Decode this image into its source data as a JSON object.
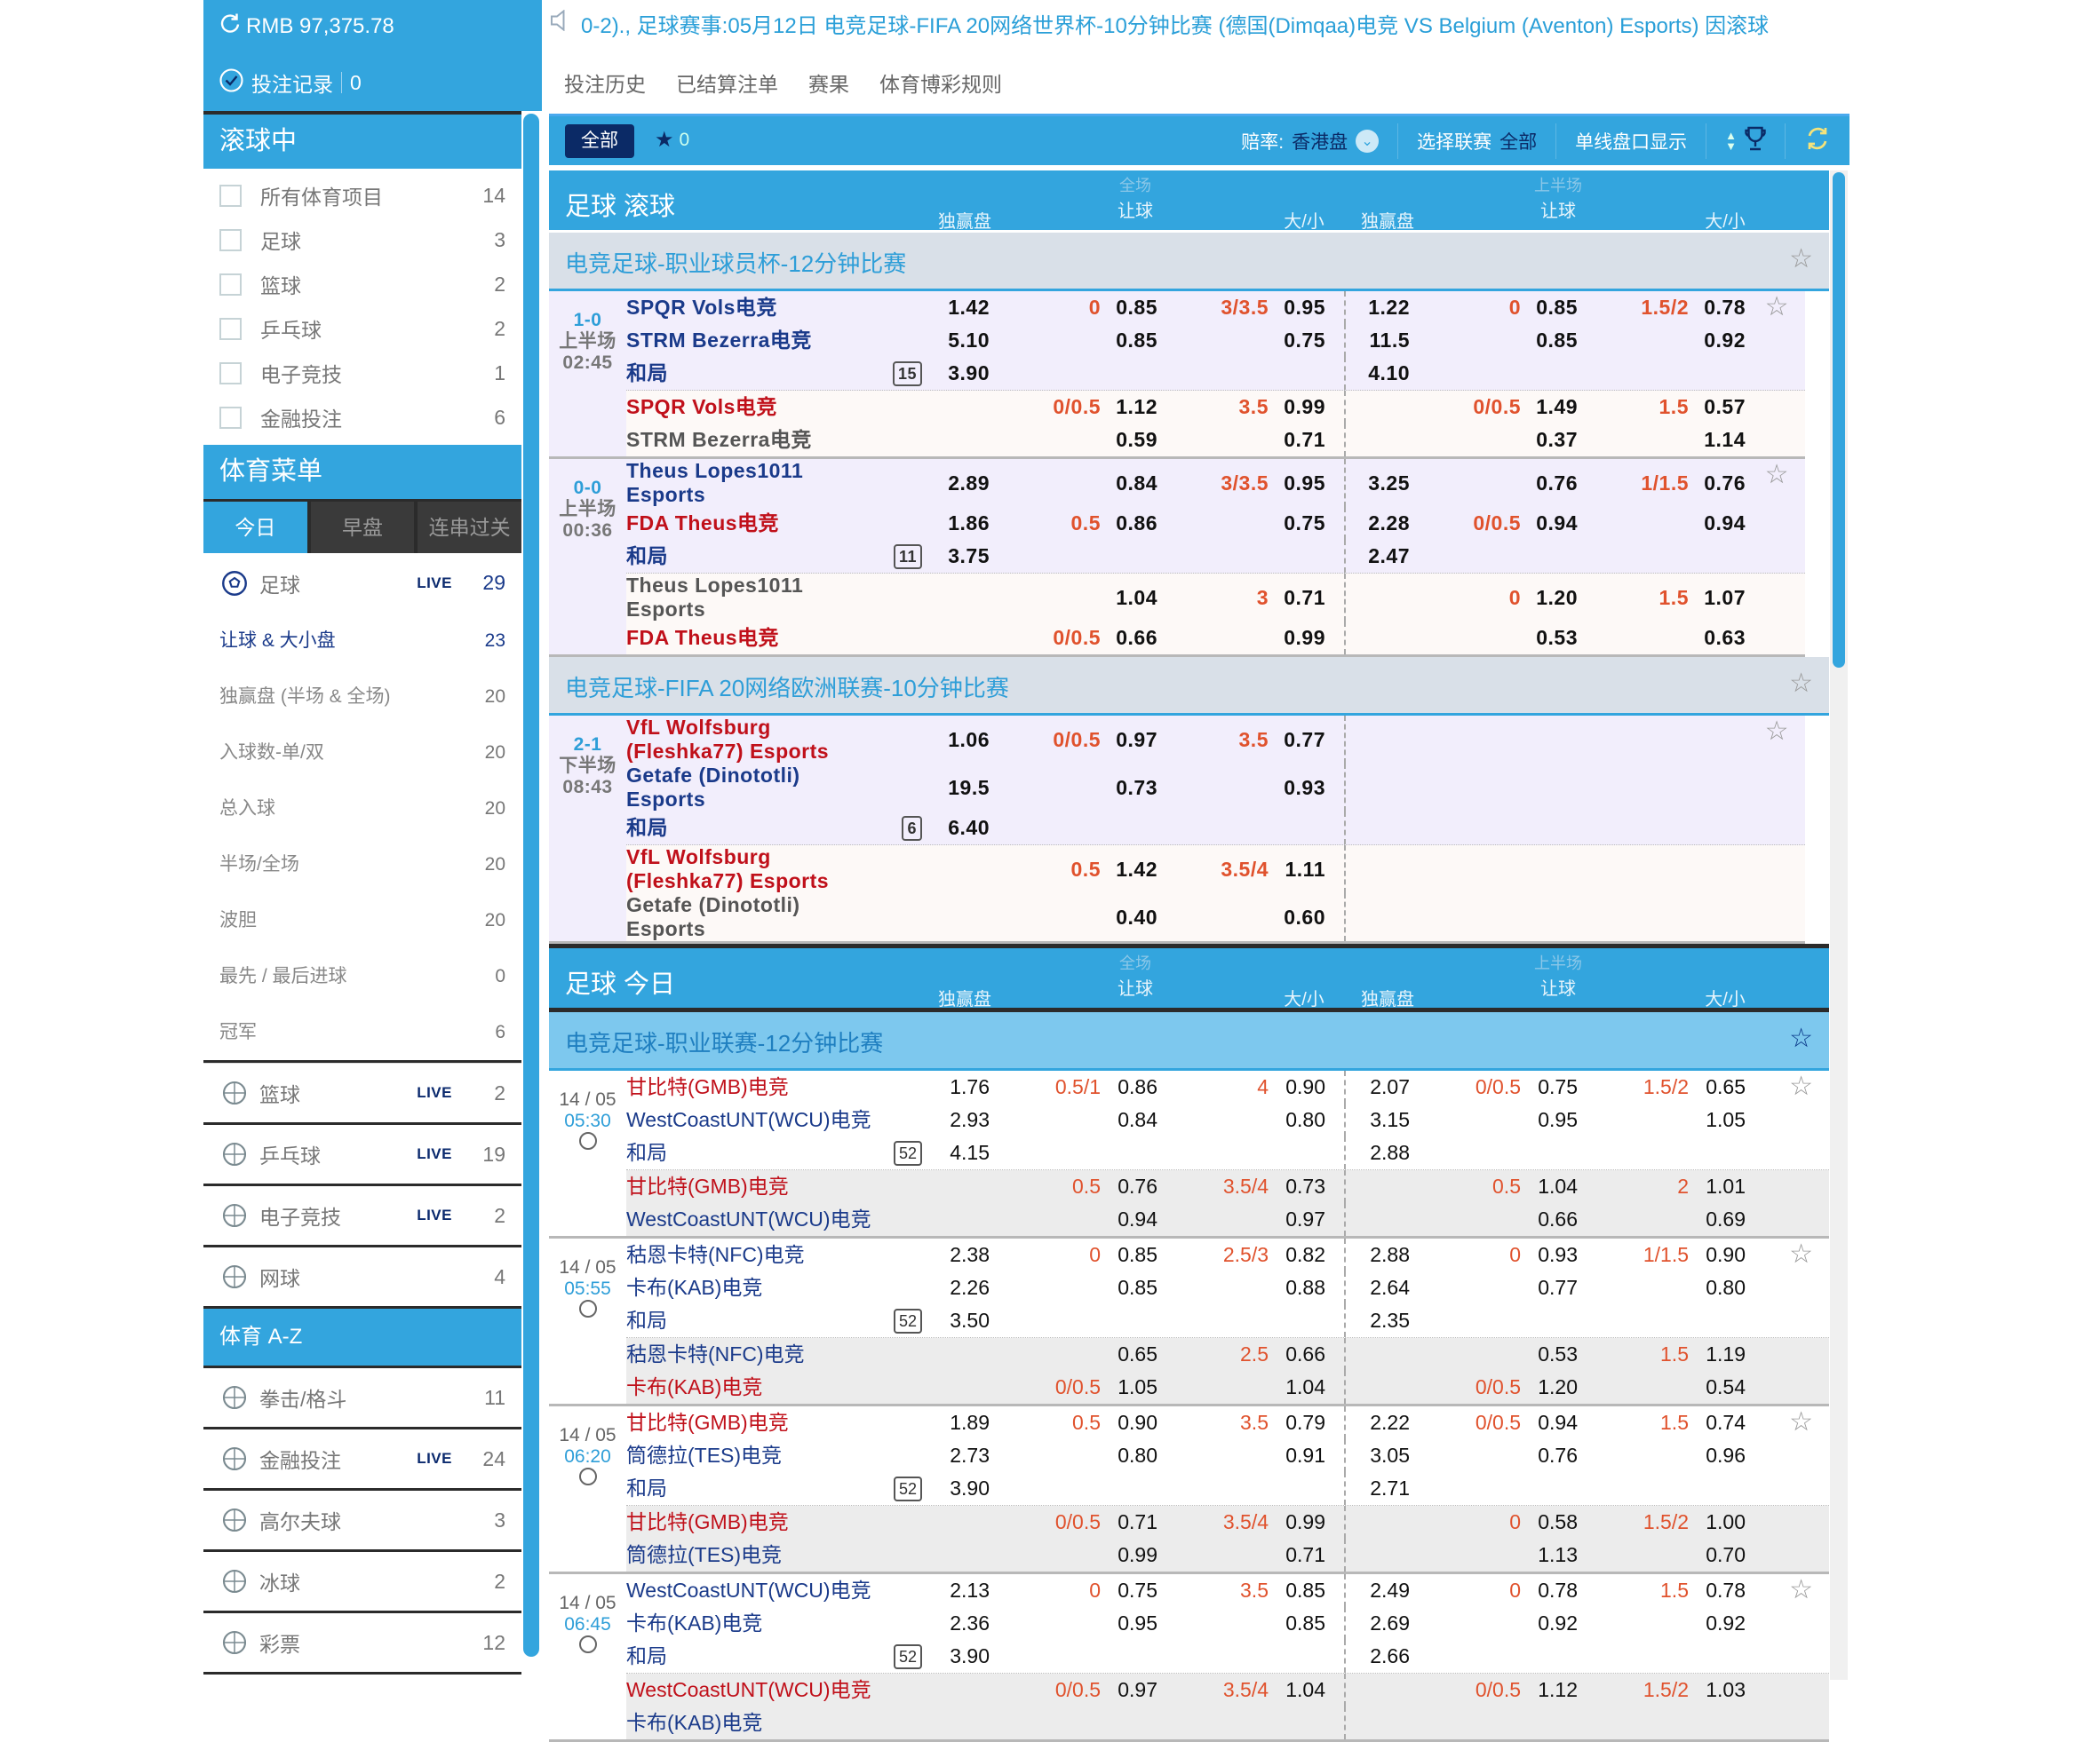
{
  "account": {
    "balance": "RMB 97,375.78",
    "bet_record_label": "投注记录",
    "bet_record_count": "0"
  },
  "ticker": "0-2)., 足球赛事:05月12日 电竞足球-FIFA 20网络世界杯-10分钟比赛 (德国(Dimqaa)电竞 VS Belgium (Aventon) Esports) 因滚球",
  "links": [
    "投注历史",
    "已结算注单",
    "赛果",
    "体育博彩规则"
  ],
  "toolbar": {
    "all": "全部",
    "fav_count": "0",
    "odds_label": "赔率:",
    "odds_value": "香港盘",
    "league_label": "选择联赛",
    "league_value": "全部",
    "single_line": "单线盘口显示"
  },
  "colors": {
    "primary": "#33a5de",
    "navy": "#0b2a66",
    "team_blue": "#1a3a8a",
    "team_red": "#c0101a",
    "line_orange": "#e0522d"
  },
  "sidebar": {
    "live_title": "滚球中",
    "live_items": [
      {
        "label": "所有体育项目",
        "count": "14"
      },
      {
        "label": "足球",
        "count": "3"
      },
      {
        "label": "篮球",
        "count": "2"
      },
      {
        "label": "乒乓球",
        "count": "2"
      },
      {
        "label": "电子竞技",
        "count": "1"
      },
      {
        "label": "金融投注",
        "count": "6"
      }
    ],
    "menu_title": "体育菜单",
    "tabs": [
      "今日",
      "早盘",
      "连串过关"
    ],
    "soccer": {
      "label": "足球",
      "live": "LIVE",
      "count": "29",
      "icon": "soccer-icon"
    },
    "soccer_sub": [
      {
        "label": "让球 & 大小盘",
        "count": "23"
      },
      {
        "label": "独赢盘 (半场 & 全场)",
        "count": "20"
      },
      {
        "label": "入球数-单/双",
        "count": "20"
      },
      {
        "label": "总入球",
        "count": "20"
      },
      {
        "label": "半场/全场",
        "count": "20"
      },
      {
        "label": "波胆",
        "count": "20"
      },
      {
        "label": "最先 / 最后进球",
        "count": "0"
      },
      {
        "label": "冠军",
        "count": "6"
      }
    ],
    "sports": [
      {
        "label": "篮球",
        "live": "LIVE",
        "count": "2",
        "icon": "basketball-icon"
      },
      {
        "label": "乒乓球",
        "live": "LIVE",
        "count": "19",
        "icon": "table-tennis-icon"
      },
      {
        "label": "电子竞技",
        "live": "LIVE",
        "count": "2",
        "icon": "gamepad-icon"
      },
      {
        "label": "网球",
        "live": "",
        "count": "4",
        "icon": "tennis-icon"
      }
    ],
    "az_title": "体育 A-Z",
    "az": [
      {
        "label": "拳击/格斗",
        "live": "",
        "count": "11",
        "icon": "boxing-glove-icon"
      },
      {
        "label": "金融投注",
        "live": "LIVE",
        "count": "24",
        "icon": "chart-icon"
      },
      {
        "label": "高尔夫球",
        "live": "",
        "count": "3",
        "icon": "golf-icon"
      },
      {
        "label": "冰球",
        "live": "",
        "count": "2",
        "icon": "hockey-icon"
      },
      {
        "label": "彩票",
        "live": "",
        "count": "12",
        "icon": "lottery-ball-icon"
      }
    ]
  },
  "columns": {
    "ft": "全场",
    "fh": "上半场",
    "x12": "独赢盘",
    "hdp": "让球",
    "ou": "大/小"
  },
  "sections": [
    {
      "title": "足球 滚球",
      "kind": "live",
      "leagues": [
        {
          "name": "电竞足球-职业球员杯-12分钟比赛",
          "matches": [
            {
              "a": "1-0",
              "b": "上半场",
              "c": "02:45",
              "badge": "15",
              "main": [
                {
                  "n": "SPQR Vols电竞",
                  "c": "blue",
                  "m": "1.42",
                  "hl": "0",
                  "ho": "0.85",
                  "ol": "3/3.5",
                  "oo": "0.95",
                  "fm": "1.22",
                  "fhl": "0",
                  "fho": "0.85",
                  "fol": "1.5/2",
                  "foo": "0.78"
                },
                {
                  "n": "STRM Bezerra电竞",
                  "c": "blue",
                  "m": "5.10",
                  "hl": "",
                  "ho": "0.85",
                  "ol": "",
                  "oo": "0.75",
                  "fm": "11.5",
                  "fhl": "",
                  "fho": "0.85",
                  "fol": "",
                  "foo": "0.92"
                },
                {
                  "n": "和局",
                  "c": "blue",
                  "m": "3.90",
                  "hl": "",
                  "ho": "",
                  "ol": "",
                  "oo": "",
                  "fm": "4.10",
                  "fhl": "",
                  "fho": "",
                  "fol": "",
                  "foo": ""
                }
              ],
              "alt": [
                {
                  "n": "SPQR Vols电竞",
                  "c": "red",
                  "m": "",
                  "hl": "0/0.5",
                  "ho": "1.12",
                  "ol": "3.5",
                  "oo": "0.99",
                  "fm": "",
                  "fhl": "0/0.5",
                  "fho": "1.49",
                  "fol": "1.5",
                  "foo": "0.57"
                },
                {
                  "n": "STRM Bezerra电竞",
                  "c": "gray",
                  "m": "",
                  "hl": "",
                  "ho": "0.59",
                  "ol": "",
                  "oo": "0.71",
                  "fm": "",
                  "fhl": "",
                  "fho": "0.37",
                  "fol": "",
                  "foo": "1.14"
                }
              ]
            },
            {
              "a": "0-0",
              "b": "上半场",
              "c": "00:36",
              "badge": "11",
              "main": [
                {
                  "n": "Theus Lopes1011 Esports",
                  "c": "blue",
                  "m": "2.89",
                  "hl": "",
                  "ho": "0.84",
                  "ol": "3/3.5",
                  "oo": "0.95",
                  "fm": "3.25",
                  "fhl": "",
                  "fho": "0.76",
                  "fol": "1/1.5",
                  "foo": "0.76"
                },
                {
                  "n": "FDA Theus电竞",
                  "c": "red",
                  "m": "1.86",
                  "hl": "0.5",
                  "ho": "0.86",
                  "ol": "",
                  "oo": "0.75",
                  "fm": "2.28",
                  "fhl": "0/0.5",
                  "fho": "0.94",
                  "fol": "",
                  "foo": "0.94"
                },
                {
                  "n": "和局",
                  "c": "blue",
                  "m": "3.75",
                  "hl": "",
                  "ho": "",
                  "ol": "",
                  "oo": "",
                  "fm": "2.47",
                  "fhl": "",
                  "fho": "",
                  "fol": "",
                  "foo": ""
                }
              ],
              "alt": [
                {
                  "n": "Theus Lopes1011 Esports",
                  "c": "gray",
                  "m": "",
                  "hl": "",
                  "ho": "1.04",
                  "ol": "3",
                  "oo": "0.71",
                  "fm": "",
                  "fhl": "0",
                  "fho": "1.20",
                  "fol": "1.5",
                  "foo": "1.07"
                },
                {
                  "n": "FDA Theus电竞",
                  "c": "red",
                  "m": "",
                  "hl": "0/0.5",
                  "ho": "0.66",
                  "ol": "",
                  "oo": "0.99",
                  "fm": "",
                  "fhl": "",
                  "fho": "0.53",
                  "fol": "",
                  "foo": "0.63"
                }
              ]
            }
          ]
        },
        {
          "name": "电竞足球-FIFA 20网络欧洲联赛-10分钟比赛",
          "matches": [
            {
              "a": "2-1",
              "b": "下半场",
              "c": "08:43",
              "badge": "6",
              "main": [
                {
                  "n": "VfL Wolfsburg (Fleshka77) Esports",
                  "c": "red",
                  "m": "1.06",
                  "hl": "0/0.5",
                  "ho": "0.97",
                  "ol": "3.5",
                  "oo": "0.77",
                  "fm": "",
                  "fhl": "",
                  "fho": "",
                  "fol": "",
                  "foo": ""
                },
                {
                  "n": "Getafe (Dinototli) Esports",
                  "c": "blue",
                  "m": "19.5",
                  "hl": "",
                  "ho": "0.73",
                  "ol": "",
                  "oo": "0.93",
                  "fm": "",
                  "fhl": "",
                  "fho": "",
                  "fol": "",
                  "foo": ""
                },
                {
                  "n": "和局",
                  "c": "blue",
                  "m": "6.40",
                  "hl": "",
                  "ho": "",
                  "ol": "",
                  "oo": "",
                  "fm": "",
                  "fhl": "",
                  "fho": "",
                  "fol": "",
                  "foo": ""
                }
              ],
              "alt": [
                {
                  "n": "VfL Wolfsburg (Fleshka77) Esports",
                  "c": "red",
                  "m": "",
                  "hl": "0.5",
                  "ho": "1.42",
                  "ol": "3.5/4",
                  "oo": "1.11",
                  "fm": "",
                  "fhl": "",
                  "fho": "",
                  "fol": "",
                  "foo": ""
                },
                {
                  "n": "Getafe (Dinototli) Esports",
                  "c": "gray",
                  "m": "",
                  "hl": "",
                  "ho": "0.40",
                  "ol": "",
                  "oo": "0.60",
                  "fm": "",
                  "fhl": "",
                  "fho": "",
                  "fol": "",
                  "foo": ""
                }
              ]
            }
          ]
        }
      ]
    },
    {
      "title": "足球 今日",
      "kind": "today",
      "leagues": [
        {
          "name": "电竞足球-职业联赛-12分钟比赛",
          "matches": [
            {
              "a": "14 / 05",
              "b": "05:30",
              "badge": "52",
              "main": [
                {
                  "n": "甘比特(GMB)电竞",
                  "c": "red",
                  "m": "1.76",
                  "hl": "0.5/1",
                  "ho": "0.86",
                  "ol": "4",
                  "oo": "0.90",
                  "fm": "2.07",
                  "fhl": "0/0.5",
                  "fho": "0.75",
                  "fol": "1.5/2",
                  "foo": "0.65"
                },
                {
                  "n": "WestCoastUNT(WCU)电竞",
                  "c": "blue",
                  "m": "2.93",
                  "hl": "",
                  "ho": "0.84",
                  "ol": "",
                  "oo": "0.80",
                  "fm": "3.15",
                  "fhl": "",
                  "fho": "0.95",
                  "fol": "",
                  "foo": "1.05"
                },
                {
                  "n": "和局",
                  "c": "blue",
                  "m": "4.15",
                  "hl": "",
                  "ho": "",
                  "ol": "",
                  "oo": "",
                  "fm": "2.88",
                  "fhl": "",
                  "fho": "",
                  "fol": "",
                  "foo": ""
                }
              ],
              "alt": [
                {
                  "n": "甘比特(GMB)电竞",
                  "c": "red",
                  "m": "",
                  "hl": "0.5",
                  "ho": "0.76",
                  "ol": "3.5/4",
                  "oo": "0.73",
                  "fm": "",
                  "fhl": "0.5",
                  "fho": "1.04",
                  "fol": "2",
                  "foo": "1.01"
                },
                {
                  "n": "WestCoastUNT(WCU)电竞",
                  "c": "blue",
                  "m": "",
                  "hl": "",
                  "ho": "0.94",
                  "ol": "",
                  "oo": "0.97",
                  "fm": "",
                  "fhl": "",
                  "fho": "0.66",
                  "fol": "",
                  "foo": "0.69"
                }
              ]
            },
            {
              "a": "14 / 05",
              "b": "05:55",
              "badge": "52",
              "main": [
                {
                  "n": "秙恩卡特(NFC)电竞",
                  "c": "blue",
                  "m": "2.38",
                  "hl": "0",
                  "ho": "0.85",
                  "ol": "2.5/3",
                  "oo": "0.82",
                  "fm": "2.88",
                  "fhl": "0",
                  "fho": "0.93",
                  "fol": "1/1.5",
                  "foo": "0.90"
                },
                {
                  "n": "卡布(KAB)电竞",
                  "c": "blue",
                  "m": "2.26",
                  "hl": "",
                  "ho": "0.85",
                  "ol": "",
                  "oo": "0.88",
                  "fm": "2.64",
                  "fhl": "",
                  "fho": "0.77",
                  "fol": "",
                  "foo": "0.80"
                },
                {
                  "n": "和局",
                  "c": "blue",
                  "m": "3.50",
                  "hl": "",
                  "ho": "",
                  "ol": "",
                  "oo": "",
                  "fm": "2.35",
                  "fhl": "",
                  "fho": "",
                  "fol": "",
                  "foo": ""
                }
              ],
              "alt": [
                {
                  "n": "秙恩卡特(NFC)电竞",
                  "c": "blue",
                  "m": "",
                  "hl": "",
                  "ho": "0.65",
                  "ol": "2.5",
                  "oo": "0.66",
                  "fm": "",
                  "fhl": "",
                  "fho": "0.53",
                  "fol": "1.5",
                  "foo": "1.19"
                },
                {
                  "n": "卡布(KAB)电竞",
                  "c": "red",
                  "m": "",
                  "hl": "0/0.5",
                  "ho": "1.05",
                  "ol": "",
                  "oo": "1.04",
                  "fm": "",
                  "fhl": "0/0.5",
                  "fho": "1.20",
                  "fol": "",
                  "foo": "0.54"
                }
              ]
            },
            {
              "a": "14 / 05",
              "b": "06:20",
              "badge": "52",
              "main": [
                {
                  "n": "甘比特(GMB)电竞",
                  "c": "red",
                  "m": "1.89",
                  "hl": "0.5",
                  "ho": "0.90",
                  "ol": "3.5",
                  "oo": "0.79",
                  "fm": "2.22",
                  "fhl": "0/0.5",
                  "fho": "0.94",
                  "fol": "1.5",
                  "foo": "0.74"
                },
                {
                  "n": "筒德拉(TES)电竞",
                  "c": "blue",
                  "m": "2.73",
                  "hl": "",
                  "ho": "0.80",
                  "ol": "",
                  "oo": "0.91",
                  "fm": "3.05",
                  "fhl": "",
                  "fho": "0.76",
                  "fol": "",
                  "foo": "0.96"
                },
                {
                  "n": "和局",
                  "c": "blue",
                  "m": "3.90",
                  "hl": "",
                  "ho": "",
                  "ol": "",
                  "oo": "",
                  "fm": "2.71",
                  "fhl": "",
                  "fho": "",
                  "fol": "",
                  "foo": ""
                }
              ],
              "alt": [
                {
                  "n": "甘比特(GMB)电竞",
                  "c": "red",
                  "m": "",
                  "hl": "0/0.5",
                  "ho": "0.71",
                  "ol": "3.5/4",
                  "oo": "0.99",
                  "fm": "",
                  "fhl": "0",
                  "fho": "0.58",
                  "fol": "1.5/2",
                  "foo": "1.00"
                },
                {
                  "n": "筒德拉(TES)电竞",
                  "c": "blue",
                  "m": "",
                  "hl": "",
                  "ho": "0.99",
                  "ol": "",
                  "oo": "0.71",
                  "fm": "",
                  "fhl": "",
                  "fho": "1.13",
                  "fol": "",
                  "foo": "0.70"
                }
              ]
            },
            {
              "a": "14 / 05",
              "b": "06:45",
              "badge": "52",
              "main": [
                {
                  "n": "WestCoastUNT(WCU)电竞",
                  "c": "blue",
                  "m": "2.13",
                  "hl": "0",
                  "ho": "0.75",
                  "ol": "3.5",
                  "oo": "0.85",
                  "fm": "2.49",
                  "fhl": "0",
                  "fho": "0.78",
                  "fol": "1.5",
                  "foo": "0.78"
                },
                {
                  "n": "卡布(KAB)电竞",
                  "c": "blue",
                  "m": "2.36",
                  "hl": "",
                  "ho": "0.95",
                  "ol": "",
                  "oo": "0.85",
                  "fm": "2.69",
                  "fhl": "",
                  "fho": "0.92",
                  "fol": "",
                  "foo": "0.92"
                },
                {
                  "n": "和局",
                  "c": "blue",
                  "m": "3.90",
                  "hl": "",
                  "ho": "",
                  "ol": "",
                  "oo": "",
                  "fm": "2.66",
                  "fhl": "",
                  "fho": "",
                  "fol": "",
                  "foo": ""
                }
              ],
              "alt": [
                {
                  "n": "WestCoastUNT(WCU)电竞",
                  "c": "red",
                  "m": "",
                  "hl": "0/0.5",
                  "ho": "0.97",
                  "ol": "3.5/4",
                  "oo": "1.04",
                  "fm": "",
                  "fhl": "0/0.5",
                  "fho": "1.12",
                  "fol": "1.5/2",
                  "foo": "1.03"
                },
                {
                  "n": "卡布(KAB)电竞",
                  "c": "blue",
                  "m": "",
                  "hl": "",
                  "ho": "",
                  "ol": "",
                  "oo": "",
                  "fm": "",
                  "fhl": "",
                  "fho": "",
                  "fol": "",
                  "foo": ""
                }
              ]
            }
          ]
        }
      ]
    }
  ]
}
